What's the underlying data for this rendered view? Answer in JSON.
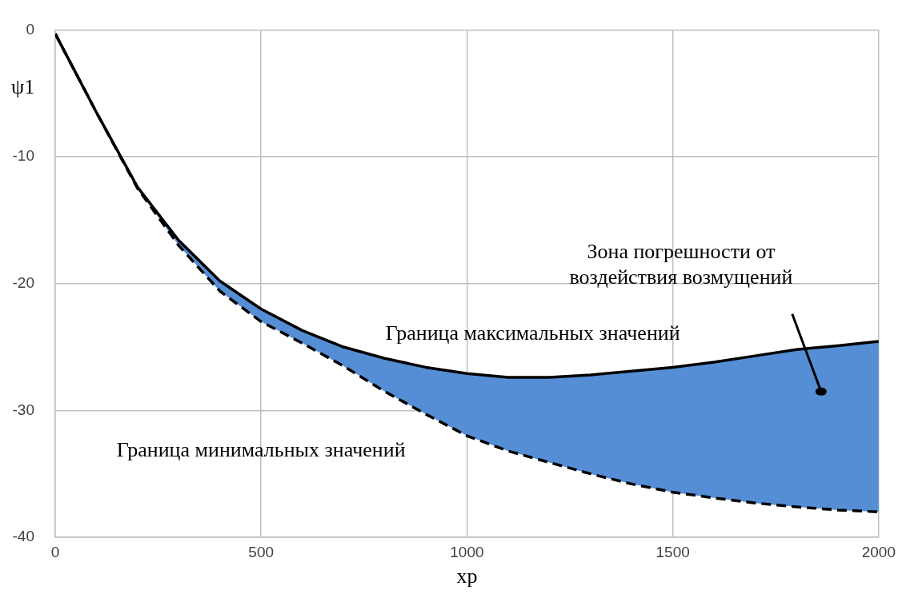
{
  "chart_data": {
    "type": "line",
    "xlabel": "xp",
    "ylabel": "ψ1",
    "x": [
      0,
      100,
      200,
      300,
      400,
      500,
      600,
      700,
      800,
      900,
      1000,
      1100,
      1200,
      1300,
      1400,
      1500,
      1600,
      1700,
      1800,
      1900,
      2000
    ],
    "xlim": [
      0,
      2000
    ],
    "xticks": [
      0,
      500,
      1000,
      1500,
      2000
    ],
    "ylim": [
      -40,
      0
    ],
    "yticks": [
      -40,
      -30,
      -20,
      -10,
      0
    ],
    "grid": true,
    "legend": false,
    "marker": "none",
    "annotations": [
      "Зона погрешности от воздействия возмущений"
    ],
    "series": [
      {
        "name": "Граница максимальных значений",
        "color": "#000000",
        "line_style": "solid",
        "values": [
          -0.3,
          -6.5,
          -12.4,
          -16.6,
          -19.8,
          -22.0,
          -23.7,
          -25.0,
          -25.9,
          -26.6,
          -27.1,
          -27.4,
          -27.4,
          -27.2,
          -26.9,
          -26.6,
          -26.2,
          -25.7,
          -25.2,
          -24.9,
          -24.55
        ],
        "upper": [
          -0.3,
          -6.5,
          -12.4,
          -16.6,
          -19.8,
          -22.0,
          -23.7,
          -25.0,
          -25.9,
          -26.6,
          -27.1,
          -27.4,
          -27.4,
          -27.2,
          -26.9,
          -26.6,
          -26.2,
          -25.7,
          -25.2,
          -24.9,
          -24.55
        ],
        "lower": [
          -0.3,
          -6.5,
          -12.5,
          -17.0,
          -20.6,
          -23.0,
          -24.7,
          -26.5,
          -28.5,
          -30.3,
          -32.0,
          -33.2,
          -34.1,
          -35.0,
          -35.8,
          -36.45,
          -36.9,
          -37.3,
          -37.6,
          -37.85,
          -38.0
        ]
      },
      {
        "name": "Граница минимальных значений",
        "color": "#000000",
        "line_style": "dashed",
        "values": [
          -0.3,
          -6.5,
          -12.5,
          -17.0,
          -20.6,
          -23.0,
          -24.7,
          -26.5,
          -28.5,
          -30.3,
          -32.0,
          -33.2,
          -34.1,
          -35.0,
          -35.8,
          -36.45,
          -36.9,
          -37.3,
          -37.6,
          -37.85,
          -38.0
        ]
      }
    ]
  }
}
